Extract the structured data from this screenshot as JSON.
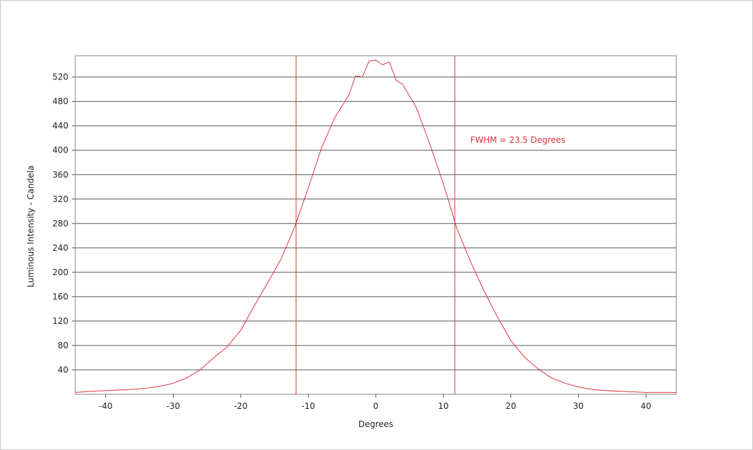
{
  "chart_data": {
    "type": "line",
    "title": "",
    "xlabel": "Degrees",
    "ylabel": "Luminous Intensity - Candela",
    "xlim": [
      -44.5,
      44.5
    ],
    "ylim": [
      0,
      555
    ],
    "xticks": [
      -40,
      -30,
      -20,
      -10,
      0,
      10,
      20,
      30,
      40
    ],
    "yticks": [
      40,
      80,
      120,
      160,
      200,
      240,
      280,
      320,
      360,
      400,
      440,
      480,
      520
    ],
    "grid": "horizontal",
    "legend": "none",
    "series": [
      {
        "color": "#e0303a",
        "x": [
          -44.5,
          -42,
          -40,
          -38,
          -36,
          -34,
          -32,
          -30,
          -28,
          -26,
          -24,
          -22,
          -20,
          -18,
          -16,
          -14,
          -12,
          -10,
          -8,
          -6,
          -4,
          -3,
          -2,
          -1,
          0,
          1,
          2,
          3,
          4,
          6,
          8,
          10,
          12,
          14,
          16,
          18,
          20,
          22,
          24,
          26,
          28,
          30,
          32,
          34,
          36,
          38,
          40,
          42,
          44.5
        ],
        "y": [
          3,
          5,
          6,
          7,
          8,
          10,
          13,
          18,
          27,
          40,
          60,
          78,
          105,
          145,
          183,
          222,
          275,
          338,
          405,
          455,
          490,
          522,
          520,
          546,
          548,
          540,
          545,
          515,
          508,
          470,
          410,
          345,
          272,
          218,
          170,
          127,
          88,
          61,
          42,
          27,
          18,
          12,
          8,
          6,
          5,
          4,
          3,
          3,
          3
        ]
      }
    ],
    "vlines": [
      -11.8,
      11.7
    ],
    "annotations": [
      {
        "text": "FWHM = 23.5 Degrees",
        "x": 14,
        "y": 412
      }
    ]
  }
}
